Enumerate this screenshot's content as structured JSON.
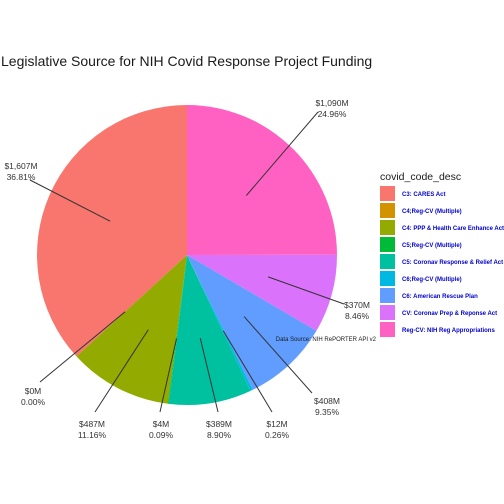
{
  "chart_data": {
    "type": "pie",
    "title": "Legislative Source for NIH Covid Response Project Funding",
    "legend_title": "covid_code_desc",
    "legend_position": "right",
    "caption": "Data Source: NIH RePORTER API v2",
    "slices": [
      {
        "name": "C3: CARES Act",
        "value_label": "$1,607M",
        "percent_label": "36.81%",
        "percent": 36.81,
        "color": "#F8766D"
      },
      {
        "name": "C4;Reg-CV (Multiple)",
        "value_label": "$0M",
        "percent_label": "0.00%",
        "percent": 0.0,
        "color": "#D39200"
      },
      {
        "name": "C4: PPP & Health Care Enhance Act",
        "value_label": "$487M",
        "percent_label": "11.16%",
        "percent": 11.16,
        "color": "#93AA00"
      },
      {
        "name": "C5;Reg-CV (Multiple)",
        "value_label": "$4M",
        "percent_label": "0.09%",
        "percent": 0.09,
        "color": "#00BA38"
      },
      {
        "name": "C5: Coronav Response & Relief Act",
        "value_label": "$389M",
        "percent_label": "8.90%",
        "percent": 8.9,
        "color": "#00C19F"
      },
      {
        "name": "C6;Reg-CV (Multiple)",
        "value_label": "$12M",
        "percent_label": "0.26%",
        "percent": 0.26,
        "color": "#00B9E3"
      },
      {
        "name": "C6: American Rescue Plan",
        "value_label": "$408M",
        "percent_label": "9.35%",
        "percent": 9.35,
        "color": "#619CFF"
      },
      {
        "name": "CV: Coronav Prep & Reponse Act",
        "value_label": "$370M",
        "percent_label": "8.46%",
        "percent": 8.46,
        "color": "#DB72FB"
      },
      {
        "name": "Reg-CV: NIH Reg Appropriations",
        "value_label": "$1,090M",
        "percent_label": "24.96%",
        "percent": 24.96,
        "color": "#FF61C3"
      }
    ]
  }
}
